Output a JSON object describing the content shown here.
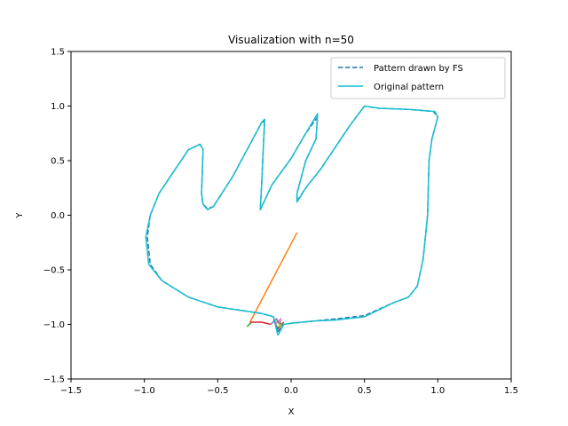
{
  "chart_data": {
    "type": "line",
    "title": "Visualization with n=50",
    "xlabel": "X",
    "ylabel": "Y",
    "xlim": [
      -1.5,
      1.5
    ],
    "ylim": [
      -1.5,
      1.5
    ],
    "xticks": [
      -1.5,
      -1.0,
      -0.5,
      0.0,
      0.5,
      1.0,
      1.5
    ],
    "yticks": [
      -1.5,
      -1.0,
      -0.5,
      0.0,
      0.5,
      1.0,
      1.5
    ],
    "xtick_labels": [
      "−1.5",
      "−1.0",
      "−0.5",
      "0.0",
      "0.5",
      "1.0",
      "1.5"
    ],
    "ytick_labels": [
      "−1.5",
      "−1.0",
      "−0.5",
      "0.0",
      "0.5",
      "1.0",
      "1.5"
    ],
    "grid": false,
    "legend_position": "upper-right",
    "series": [
      {
        "name": "Pattern drawn by FS",
        "style": "dashed",
        "color": "#1f77b4",
        "points": [
          [
            -0.09,
            -1.07
          ],
          [
            -0.12,
            -0.93
          ],
          [
            -0.2,
            -0.9
          ],
          [
            -0.35,
            -0.87
          ],
          [
            -0.5,
            -0.84
          ],
          [
            -0.7,
            -0.75
          ],
          [
            -0.88,
            -0.6
          ],
          [
            -0.96,
            -0.45
          ],
          [
            -0.98,
            -0.2
          ],
          [
            -0.96,
            0.0
          ],
          [
            -0.9,
            0.2
          ],
          [
            -0.8,
            0.4
          ],
          [
            -0.7,
            0.6
          ],
          [
            -0.62,
            0.65
          ],
          [
            -0.6,
            0.6
          ],
          [
            -0.61,
            0.2
          ],
          [
            -0.6,
            0.1
          ],
          [
            -0.57,
            0.06
          ],
          [
            -0.53,
            0.08
          ],
          [
            -0.4,
            0.35
          ],
          [
            -0.3,
            0.6
          ],
          [
            -0.2,
            0.85
          ],
          [
            -0.18,
            0.86
          ],
          [
            -0.19,
            0.6
          ],
          [
            -0.2,
            0.3
          ],
          [
            -0.21,
            0.05
          ],
          [
            -0.13,
            0.28
          ],
          [
            0.0,
            0.52
          ],
          [
            0.1,
            0.75
          ],
          [
            0.18,
            0.9
          ],
          [
            0.17,
            0.7
          ],
          [
            0.1,
            0.5
          ],
          [
            0.04,
            0.2
          ],
          [
            0.04,
            0.13
          ],
          [
            0.1,
            0.25
          ],
          [
            0.2,
            0.42
          ],
          [
            0.3,
            0.62
          ],
          [
            0.4,
            0.82
          ],
          [
            0.5,
            1.0
          ],
          [
            0.6,
            0.98
          ],
          [
            0.8,
            0.97
          ],
          [
            0.97,
            0.95
          ],
          [
            1.0,
            0.9
          ],
          [
            0.96,
            0.7
          ],
          [
            0.94,
            0.5
          ],
          [
            0.93,
            0.0
          ],
          [
            0.9,
            -0.4
          ],
          [
            0.86,
            -0.65
          ],
          [
            0.8,
            -0.75
          ],
          [
            0.7,
            -0.8
          ],
          [
            0.5,
            -0.92
          ],
          [
            0.3,
            -0.95
          ],
          [
            0.15,
            -0.97
          ],
          [
            0.0,
            -0.99
          ],
          [
            -0.05,
            -1.0
          ],
          [
            -0.09,
            -1.07
          ]
        ]
      },
      {
        "name": "Original pattern",
        "style": "solid",
        "color": "#17becf",
        "points": [
          [
            -0.09,
            -1.1
          ],
          [
            -0.12,
            -0.93
          ],
          [
            -0.2,
            -0.9
          ],
          [
            -0.35,
            -0.87
          ],
          [
            -0.5,
            -0.84
          ],
          [
            -0.7,
            -0.75
          ],
          [
            -0.88,
            -0.6
          ],
          [
            -0.97,
            -0.45
          ],
          [
            -0.99,
            -0.2
          ],
          [
            -0.96,
            0.0
          ],
          [
            -0.9,
            0.2
          ],
          [
            -0.8,
            0.4
          ],
          [
            -0.7,
            0.6
          ],
          [
            -0.62,
            0.65
          ],
          [
            -0.6,
            0.6
          ],
          [
            -0.61,
            0.2
          ],
          [
            -0.6,
            0.1
          ],
          [
            -0.57,
            0.05
          ],
          [
            -0.53,
            0.08
          ],
          [
            -0.4,
            0.35
          ],
          [
            -0.3,
            0.6
          ],
          [
            -0.2,
            0.85
          ],
          [
            -0.18,
            0.88
          ],
          [
            -0.19,
            0.6
          ],
          [
            -0.2,
            0.3
          ],
          [
            -0.21,
            0.05
          ],
          [
            -0.13,
            0.28
          ],
          [
            0.0,
            0.52
          ],
          [
            0.1,
            0.75
          ],
          [
            0.18,
            0.93
          ],
          [
            0.17,
            0.7
          ],
          [
            0.1,
            0.5
          ],
          [
            0.04,
            0.2
          ],
          [
            0.04,
            0.12
          ],
          [
            0.1,
            0.25
          ],
          [
            0.2,
            0.42
          ],
          [
            0.3,
            0.62
          ],
          [
            0.4,
            0.82
          ],
          [
            0.5,
            1.0
          ],
          [
            0.6,
            0.98
          ],
          [
            0.8,
            0.97
          ],
          [
            0.98,
            0.95
          ],
          [
            1.0,
            0.9
          ],
          [
            0.96,
            0.7
          ],
          [
            0.94,
            0.5
          ],
          [
            0.93,
            0.0
          ],
          [
            0.9,
            -0.4
          ],
          [
            0.86,
            -0.65
          ],
          [
            0.8,
            -0.75
          ],
          [
            0.7,
            -0.8
          ],
          [
            0.5,
            -0.93
          ],
          [
            0.3,
            -0.96
          ],
          [
            0.15,
            -0.97
          ],
          [
            0.0,
            -0.99
          ],
          [
            -0.05,
            -1.0
          ],
          [
            -0.09,
            -1.1
          ]
        ]
      }
    ],
    "component_lines": [
      {
        "color": "#ff7f0e",
        "points": [
          [
            -0.28,
            -0.98
          ],
          [
            0.04,
            -0.16
          ]
        ]
      },
      {
        "color": "#2ca02c",
        "points": [
          [
            -0.3,
            -1.02
          ],
          [
            -0.27,
            -0.98
          ]
        ]
      },
      {
        "color": "#d62728",
        "points": [
          [
            -0.28,
            -0.98
          ],
          [
            -0.2,
            -0.98
          ],
          [
            -0.14,
            -1.0
          ]
        ]
      },
      {
        "color": "#9467bd",
        "points": [
          [
            -0.14,
            -1.0
          ],
          [
            -0.1,
            -0.95
          ],
          [
            -0.06,
            -1.02
          ]
        ]
      },
      {
        "color": "#8c564b",
        "points": [
          [
            -0.12,
            -0.96
          ],
          [
            -0.09,
            -1.04
          ],
          [
            -0.05,
            -0.98
          ]
        ]
      },
      {
        "color": "#e377c2",
        "points": [
          [
            -0.11,
            -1.0
          ],
          [
            -0.07,
            -0.95
          ],
          [
            -0.08,
            -1.05
          ]
        ]
      },
      {
        "color": "#7f7f7f",
        "points": [
          [
            -0.1,
            -0.97
          ],
          [
            -0.06,
            -1.0
          ],
          [
            -0.08,
            -1.03
          ]
        ]
      },
      {
        "color": "#bcbd22",
        "points": [
          [
            -0.09,
            -0.99
          ],
          [
            -0.07,
            -1.01
          ],
          [
            -0.09,
            -1.02
          ]
        ]
      }
    ]
  }
}
